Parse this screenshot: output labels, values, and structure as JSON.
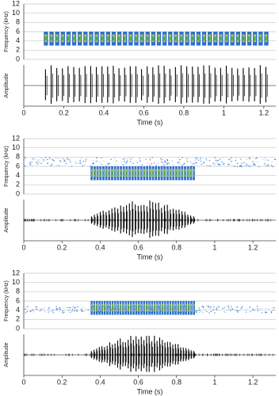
{
  "chart_data": [
    {
      "type": "spectrogram",
      "ylabel": "Frequency (kHz)",
      "amplitude_label": "Amplitude",
      "xlabel": "Time (s)",
      "xlim": [
        0,
        1.26
      ],
      "xticks": [
        0,
        0.2,
        0.4,
        0.6,
        0.8,
        1,
        1.2
      ],
      "ylim": [
        0,
        12
      ],
      "yticks": [
        0,
        2,
        4,
        6,
        8,
        10,
        12
      ],
      "segments": [
        {
          "start": 0.1,
          "end": 1.23,
          "low": 3,
          "high": 6,
          "pulses": 40
        }
      ],
      "background": []
    },
    {
      "type": "spectrogram",
      "ylabel": "Frequency (kHz)",
      "amplitude_label": "Amplitude",
      "xlabel": "Time (s)",
      "xlim": [
        0,
        1.32
      ],
      "xticks": [
        0,
        0.2,
        0.4,
        0.6,
        0.8,
        1,
        1.2
      ],
      "ylim": [
        0,
        12
      ],
      "yticks": [
        0,
        2,
        4,
        6,
        8,
        10,
        12
      ],
      "segments": [
        {
          "start": 0.35,
          "end": 0.9,
          "low": 3,
          "high": 6,
          "pulses": 36
        }
      ],
      "background": [
        {
          "start": 0,
          "end": 1.32,
          "low": 6,
          "high": 8
        }
      ]
    },
    {
      "type": "spectrogram",
      "ylabel": "Frequency (kHz)",
      "amplitude_label": "Amplitude",
      "xlabel": "Time (s)",
      "xlim": [
        0,
        1.32
      ],
      "xticks": [
        0,
        0.2,
        0.4,
        0.6,
        0.8,
        1,
        1.2
      ],
      "ylim": [
        0,
        12
      ],
      "yticks": [
        0,
        2,
        4,
        6,
        8,
        10,
        12
      ],
      "segments": [
        {
          "start": 0.35,
          "end": 0.9,
          "low": 3,
          "high": 6,
          "pulses": 40
        }
      ],
      "background": [
        {
          "start": 0,
          "end": 1.32,
          "low": 3.5,
          "high": 5
        }
      ]
    }
  ]
}
